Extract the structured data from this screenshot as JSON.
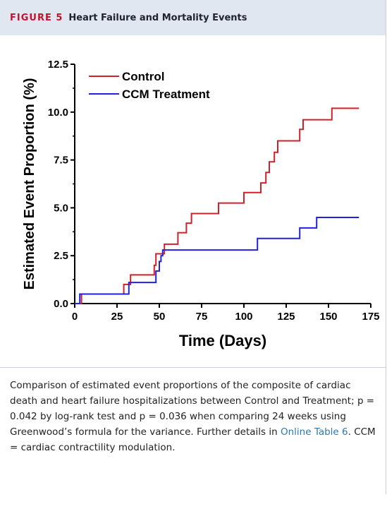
{
  "figure_label": "FIGURE 5",
  "figure_title": "Heart Failure and Mortality Events",
  "chart_data": {
    "type": "step",
    "xlabel": "Time (Days)",
    "ylabel": "Estimated Event Proportion (%)",
    "xlim": [
      0,
      175
    ],
    "ylim": [
      0,
      12.5
    ],
    "xticks": [
      0,
      25,
      50,
      75,
      100,
      125,
      150,
      175
    ],
    "yticks": [
      {
        "value": 0,
        "label": "0.0"
      },
      {
        "value": 2.5,
        "label": "2.5"
      },
      {
        "value": 5,
        "label": "5.0"
      },
      {
        "value": 7.5,
        "label": "7.5"
      },
      {
        "value": 10,
        "label": "10.0"
      },
      {
        "value": 12.5,
        "label": "12.5"
      }
    ],
    "series": [
      {
        "name": "Control",
        "color": "#d0202a",
        "x": [
          0,
          4,
          29,
          33,
          47,
          48,
          53,
          61,
          66,
          69,
          85,
          100,
          110,
          113,
          115,
          118,
          120,
          133,
          135,
          152,
          168
        ],
        "values": [
          0,
          0.5,
          1.0,
          1.5,
          2.0,
          2.6,
          3.1,
          3.7,
          4.2,
          4.7,
          5.25,
          5.8,
          6.3,
          6.85,
          7.4,
          7.9,
          8.5,
          9.1,
          9.6,
          10.2,
          10.2
        ]
      },
      {
        "name": "CCM Treatment",
        "color": "#2222dd",
        "x": [
          0,
          3,
          32,
          48,
          50,
          51,
          52,
          108,
          133,
          143,
          168
        ],
        "values": [
          0,
          0.5,
          1.1,
          1.7,
          2.2,
          2.5,
          2.8,
          3.4,
          3.95,
          4.5,
          4.5
        ]
      }
    ],
    "legend": "upper left"
  },
  "caption": {
    "text": "Comparison of estimated event proportions of the composite of cardiac death and heart failure hospitalizations between Control and Treatment; p = 0.042 by log-rank test and p = 0.036 when comparing 24 weeks using Greenwood’s formula for the variance. Further details in ",
    "link": "Online Table 6",
    "text_end": ". CCM = cardiac contractility modulation."
  }
}
